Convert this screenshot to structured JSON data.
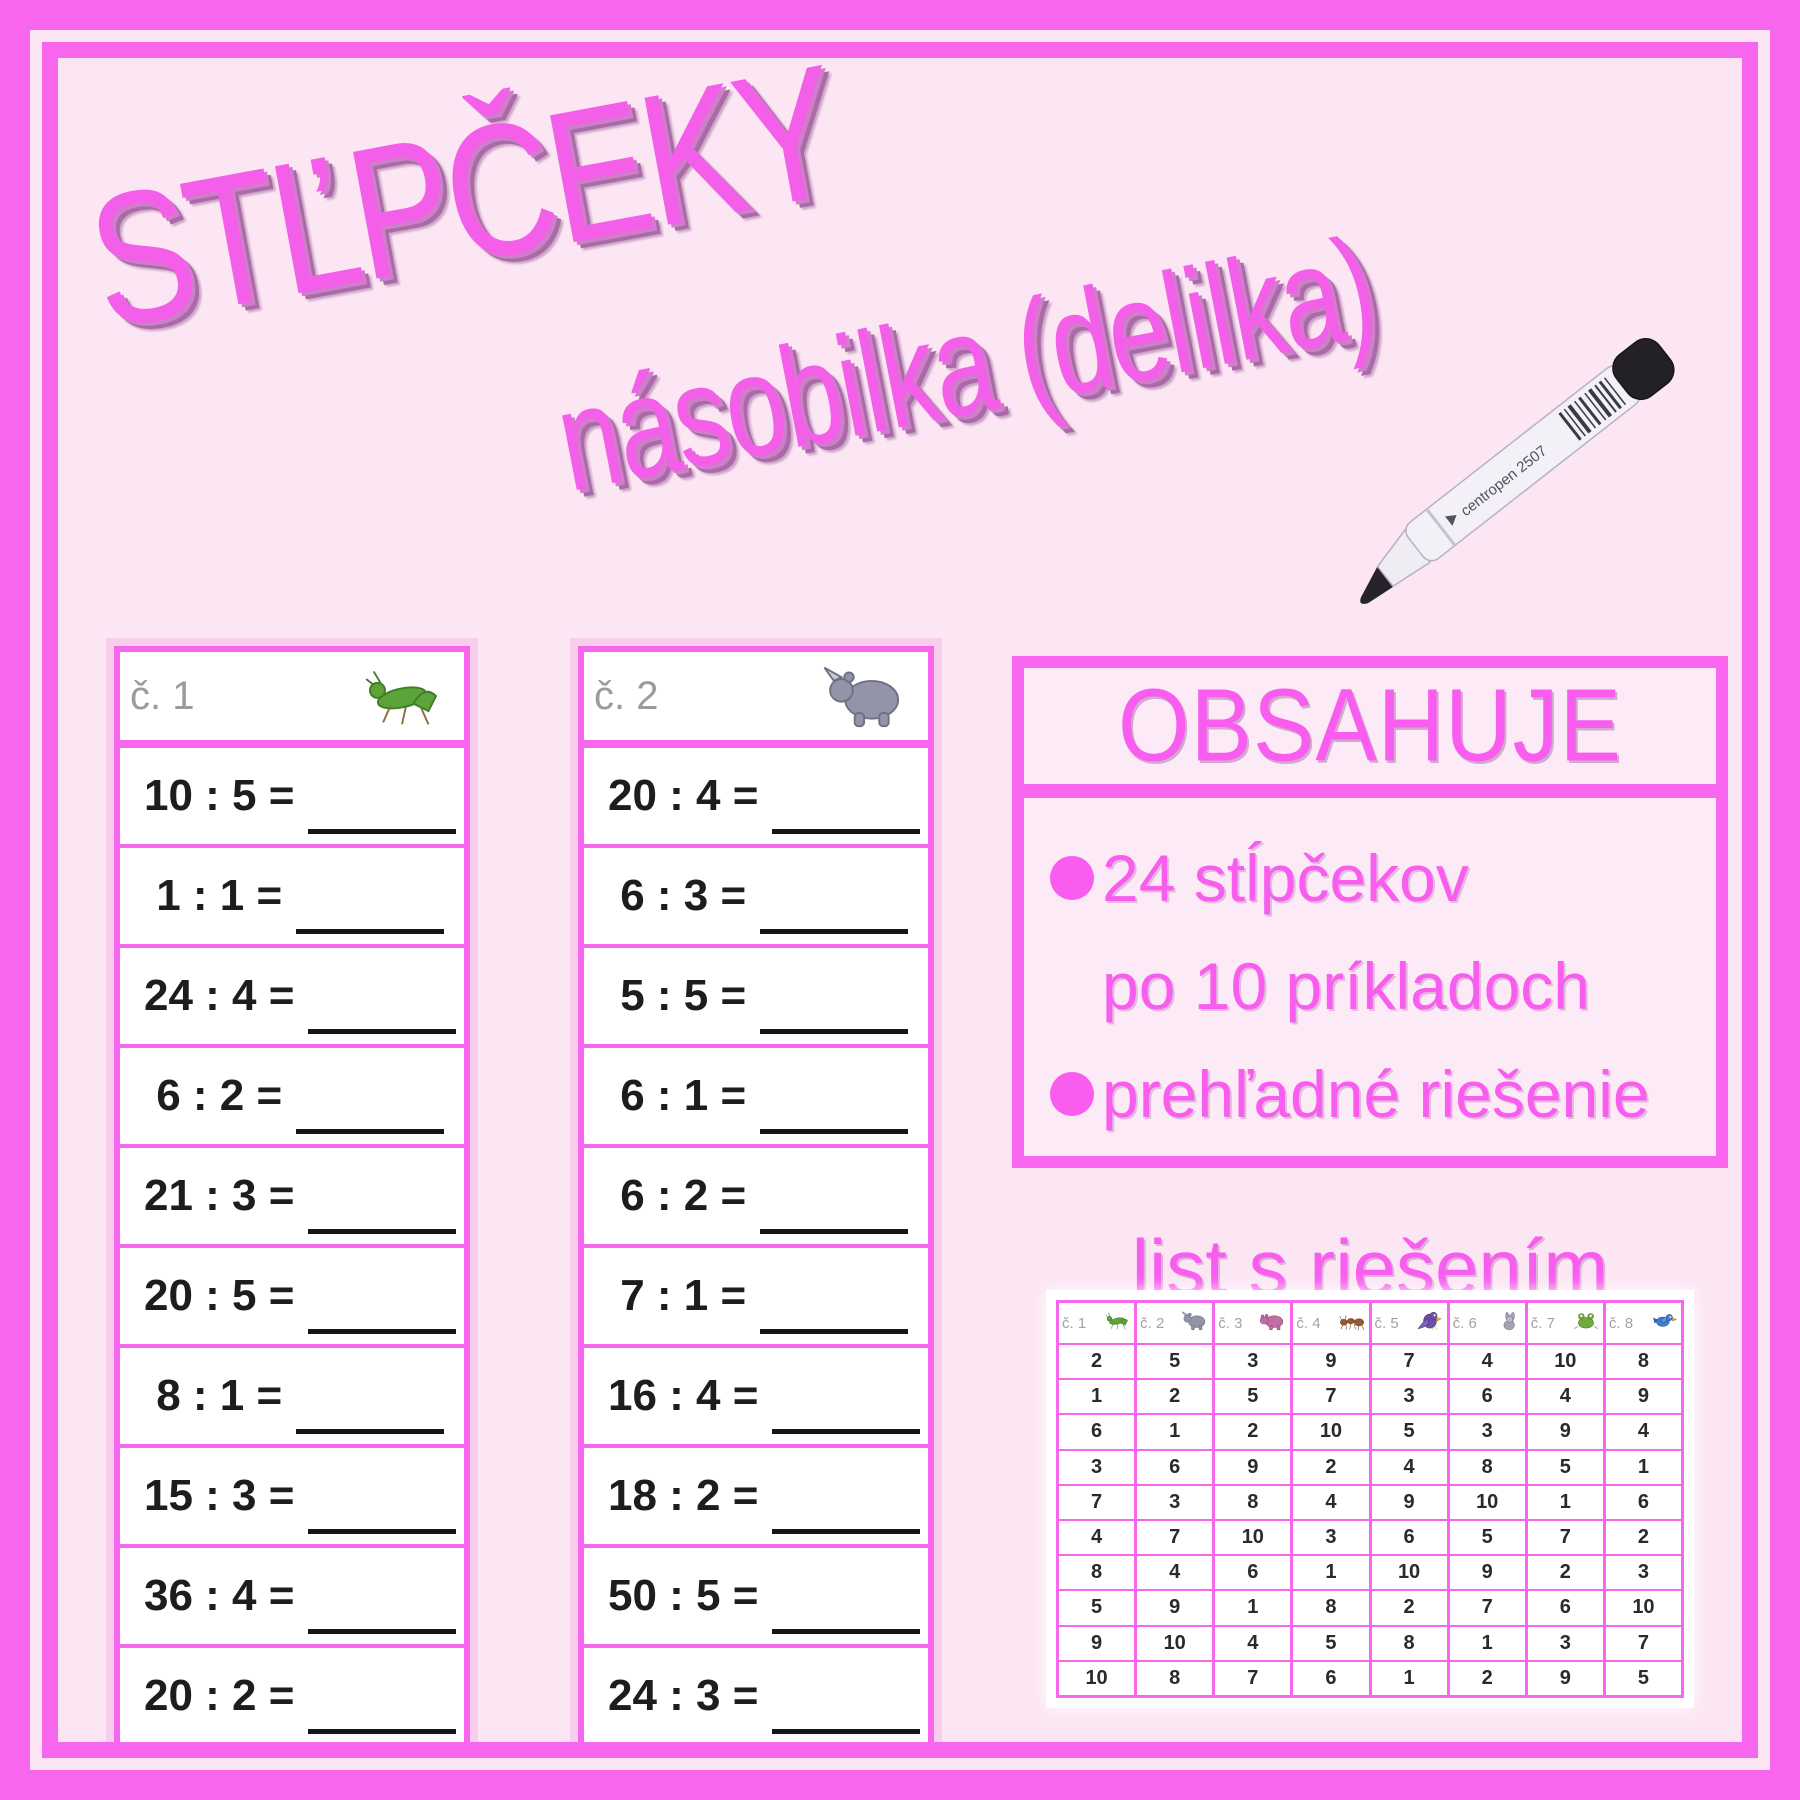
{
  "header": {
    "title": "STĽPČEKY",
    "subtitle": "násobilka (delilka)"
  },
  "pen": {
    "label": "centropen 2507"
  },
  "worksheets": [
    {
      "label": "č. 1",
      "icon": "grasshopper",
      "problems": [
        "10 : 5 =",
        " 1 : 1 =",
        "24 : 4 =",
        " 6 : 2 =",
        "21 : 3 =",
        "20 : 5 =",
        " 8 : 1 =",
        "15 : 3 =",
        "36 : 4 =",
        "20 : 2 ="
      ]
    },
    {
      "label": "č. 2",
      "icon": "rhino",
      "problems": [
        "20 : 4 =",
        " 6 : 3 =",
        " 5 : 5 =",
        " 6 : 1 =",
        " 6 : 2 =",
        " 7 : 1 =",
        "16 : 4 =",
        "18 : 2 =",
        "50 : 5 =",
        "24 : 3 ="
      ]
    }
  ],
  "contents": {
    "title": "OBSAHUJE",
    "items": [
      {
        "bullet": true,
        "text": "24 stĺpčekov"
      },
      {
        "bullet": false,
        "text": "po 10 príkladoch"
      },
      {
        "bullet": true,
        "text": "prehľadné riešenie"
      }
    ]
  },
  "solution": {
    "heading": "list s riešením",
    "columns": [
      {
        "label": "č. 1",
        "icon": "grasshopper"
      },
      {
        "label": "č. 2",
        "icon": "rhino"
      },
      {
        "label": "č. 3",
        "icon": "hippo"
      },
      {
        "label": "č. 4",
        "icon": "ant"
      },
      {
        "label": "č. 5",
        "icon": "parrot"
      },
      {
        "label": "č. 6",
        "icon": "rabbit"
      },
      {
        "label": "č. 7",
        "icon": "frog"
      },
      {
        "label": "č. 8",
        "icon": "bird"
      }
    ],
    "rows": [
      [
        2,
        5,
        3,
        9,
        7,
        4,
        10,
        8
      ],
      [
        1,
        2,
        5,
        7,
        3,
        6,
        4,
        9
      ],
      [
        6,
        1,
        2,
        10,
        5,
        3,
        9,
        4
      ],
      [
        3,
        6,
        9,
        2,
        4,
        8,
        5,
        1
      ],
      [
        7,
        3,
        8,
        4,
        9,
        10,
        1,
        6
      ],
      [
        4,
        7,
        10,
        3,
        6,
        5,
        7,
        2
      ],
      [
        8,
        4,
        6,
        1,
        10,
        9,
        2,
        3
      ],
      [
        5,
        9,
        1,
        8,
        2,
        7,
        6,
        10
      ],
      [
        9,
        10,
        4,
        5,
        8,
        1,
        3,
        7
      ],
      [
        10,
        8,
        7,
        6,
        1,
        2,
        9,
        5
      ]
    ]
  },
  "colors": {
    "frame_magenta": "#f966ee",
    "page_pink": "#fce6f4",
    "card_halo_pink": "#f9cdec",
    "headline_pink": "#f45fe9",
    "accent_pink_text": "#f85def",
    "problem_text_dark": "#1d1d1f",
    "label_gray": "#9c9aa0"
  }
}
